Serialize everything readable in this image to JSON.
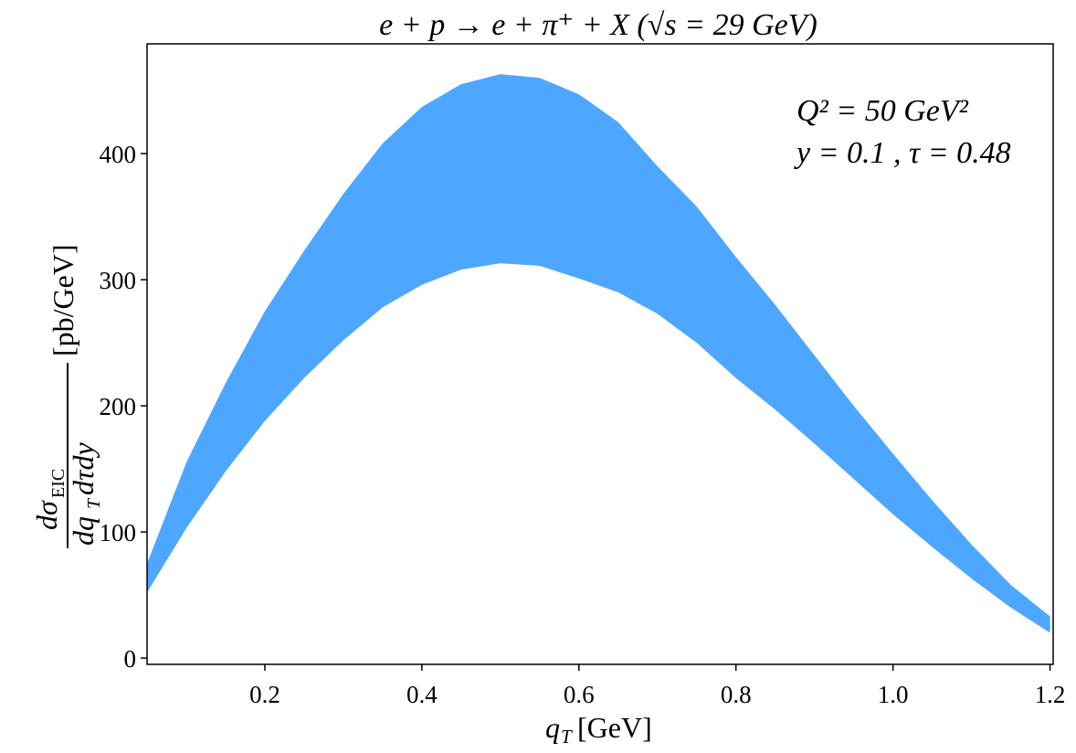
{
  "chart_data": {
    "type": "band",
    "title": "e + p → e + π⁺ + X (√s = 29 GeV)",
    "x_label": {
      "symbol": "q",
      "subscript": "T",
      "unit": "[GeV]"
    },
    "y_label": {
      "numerator": "dσ",
      "numerator_subscript": "EIC",
      "denominator": "dq",
      "denominator_subscript": "T",
      "denominator_rest": "dτdy",
      "unit": "[pb/GeV]"
    },
    "annotations": [
      "Q² = 50 GeV²",
      "y = 0.1 , τ = 0.48"
    ],
    "x": [
      0.05,
      0.1,
      0.15,
      0.2,
      0.25,
      0.3,
      0.35,
      0.4,
      0.45,
      0.5,
      0.55,
      0.6,
      0.65,
      0.7,
      0.75,
      0.8,
      0.85,
      0.9,
      0.95,
      1.0,
      1.05,
      1.1,
      1.15,
      1.2
    ],
    "lower": [
      52,
      103,
      148,
      188,
      222,
      252,
      278,
      296,
      308,
      313,
      311,
      301,
      290,
      273,
      250,
      222,
      197,
      170,
      142,
      114,
      88,
      63,
      40,
      20
    ],
    "upper": [
      75,
      155,
      218,
      275,
      323,
      368,
      408,
      437,
      455,
      463,
      460,
      447,
      425,
      390,
      358,
      318,
      280,
      240,
      200,
      162,
      125,
      90,
      58,
      33
    ],
    "color": "#4da6ff",
    "xlim": [
      0.05,
      1.204
    ],
    "ylim": [
      -5,
      487
    ],
    "xticks": [
      0.2,
      0.4,
      0.6,
      0.8,
      {
        "value": 1,
        "label": "1.0"
      },
      1.2
    ],
    "yticks": [
      0,
      100,
      200,
      300,
      400
    ],
    "grid": false
  }
}
